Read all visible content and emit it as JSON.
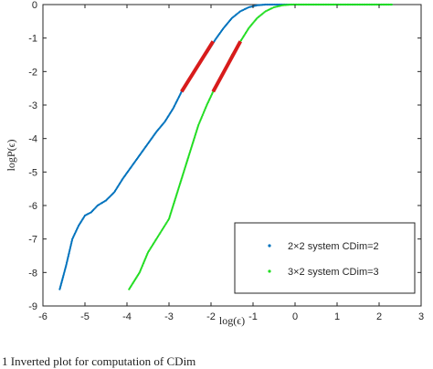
{
  "chart_data": {
    "type": "scatter",
    "xlabel": "log(ϵ)",
    "ylabel": "logP(ϵ)",
    "xlim": [
      -6,
      3
    ],
    "ylim": [
      -9,
      0
    ],
    "x_ticks": [
      -6,
      -5,
      -4,
      -3,
      -2,
      -1,
      0,
      1,
      2,
      3
    ],
    "x_tick_labels": [
      "-6",
      "-5",
      "-4",
      "-3",
      "-2",
      "-1",
      "0",
      "1",
      "2",
      "3"
    ],
    "y_ticks": [
      0,
      -1,
      -2,
      -3,
      -4,
      -5,
      -6,
      -7,
      -8,
      -9
    ],
    "y_tick_labels": [
      "0",
      "-1",
      "-2",
      "-3",
      "-4",
      "-5",
      "-6",
      "-7",
      "-8",
      "-9"
    ],
    "grid": false,
    "legend_position": "bottom-right",
    "series": [
      {
        "name": "2×2 system CDim=2",
        "color": "#0072BD",
        "points": [
          [
            -5.6,
            -8.5
          ],
          [
            -5.45,
            -7.8
          ],
          [
            -5.3,
            -7.0
          ],
          [
            -5.15,
            -6.6
          ],
          [
            -5.0,
            -6.3
          ],
          [
            -4.85,
            -6.2
          ],
          [
            -4.7,
            -6.0
          ],
          [
            -4.5,
            -5.85
          ],
          [
            -4.3,
            -5.6
          ],
          [
            -4.1,
            -5.2
          ],
          [
            -3.9,
            -4.85
          ],
          [
            -3.7,
            -4.5
          ],
          [
            -3.5,
            -4.15
          ],
          [
            -3.3,
            -3.8
          ],
          [
            -3.1,
            -3.5
          ],
          [
            -2.9,
            -3.1
          ],
          [
            -2.7,
            -2.6
          ],
          [
            -2.5,
            -2.2
          ],
          [
            -2.3,
            -1.8
          ],
          [
            -2.1,
            -1.45
          ],
          [
            -1.9,
            -1.05
          ],
          [
            -1.7,
            -0.7
          ],
          [
            -1.5,
            -0.4
          ],
          [
            -1.3,
            -0.2
          ],
          [
            -1.1,
            -0.08
          ],
          [
            -0.9,
            -0.02
          ],
          [
            -0.7,
            0
          ],
          [
            0,
            0
          ],
          [
            1,
            0
          ],
          [
            2.3,
            0
          ]
        ],
        "fit_segment": {
          "x": [
            -2.7,
            -1.95
          ],
          "y": [
            -2.6,
            -1.1
          ],
          "color": "#D81B1B"
        }
      },
      {
        "name": "3×2 system CDim=3",
        "color": "#22DD22",
        "points": [
          [
            -3.95,
            -8.5
          ],
          [
            -3.7,
            -8.0
          ],
          [
            -3.5,
            -7.4
          ],
          [
            -3.3,
            -7.0
          ],
          [
            -3.15,
            -6.7
          ],
          [
            -3.0,
            -6.4
          ],
          [
            -2.9,
            -6.0
          ],
          [
            -2.8,
            -5.6
          ],
          [
            -2.7,
            -5.2
          ],
          [
            -2.6,
            -4.8
          ],
          [
            -2.5,
            -4.4
          ],
          [
            -2.4,
            -4.0
          ],
          [
            -2.3,
            -3.6
          ],
          [
            -2.2,
            -3.3
          ],
          [
            -2.1,
            -3.0
          ],
          [
            -1.95,
            -2.6
          ],
          [
            -1.7,
            -2.0
          ],
          [
            -1.5,
            -1.5
          ],
          [
            -1.3,
            -1.1
          ],
          [
            -1.1,
            -0.7
          ],
          [
            -0.9,
            -0.4
          ],
          [
            -0.7,
            -0.2
          ],
          [
            -0.5,
            -0.08
          ],
          [
            -0.3,
            -0.02
          ],
          [
            -0.1,
            0
          ],
          [
            1,
            0
          ],
          [
            2.3,
            0
          ]
        ],
        "fit_segment": {
          "x": [
            -1.95,
            -1.3
          ],
          "y": [
            -2.6,
            -1.1
          ],
          "color": "#D81B1B"
        }
      }
    ]
  },
  "caption": "1   Inverted  plot  for  computation  of  CDim"
}
